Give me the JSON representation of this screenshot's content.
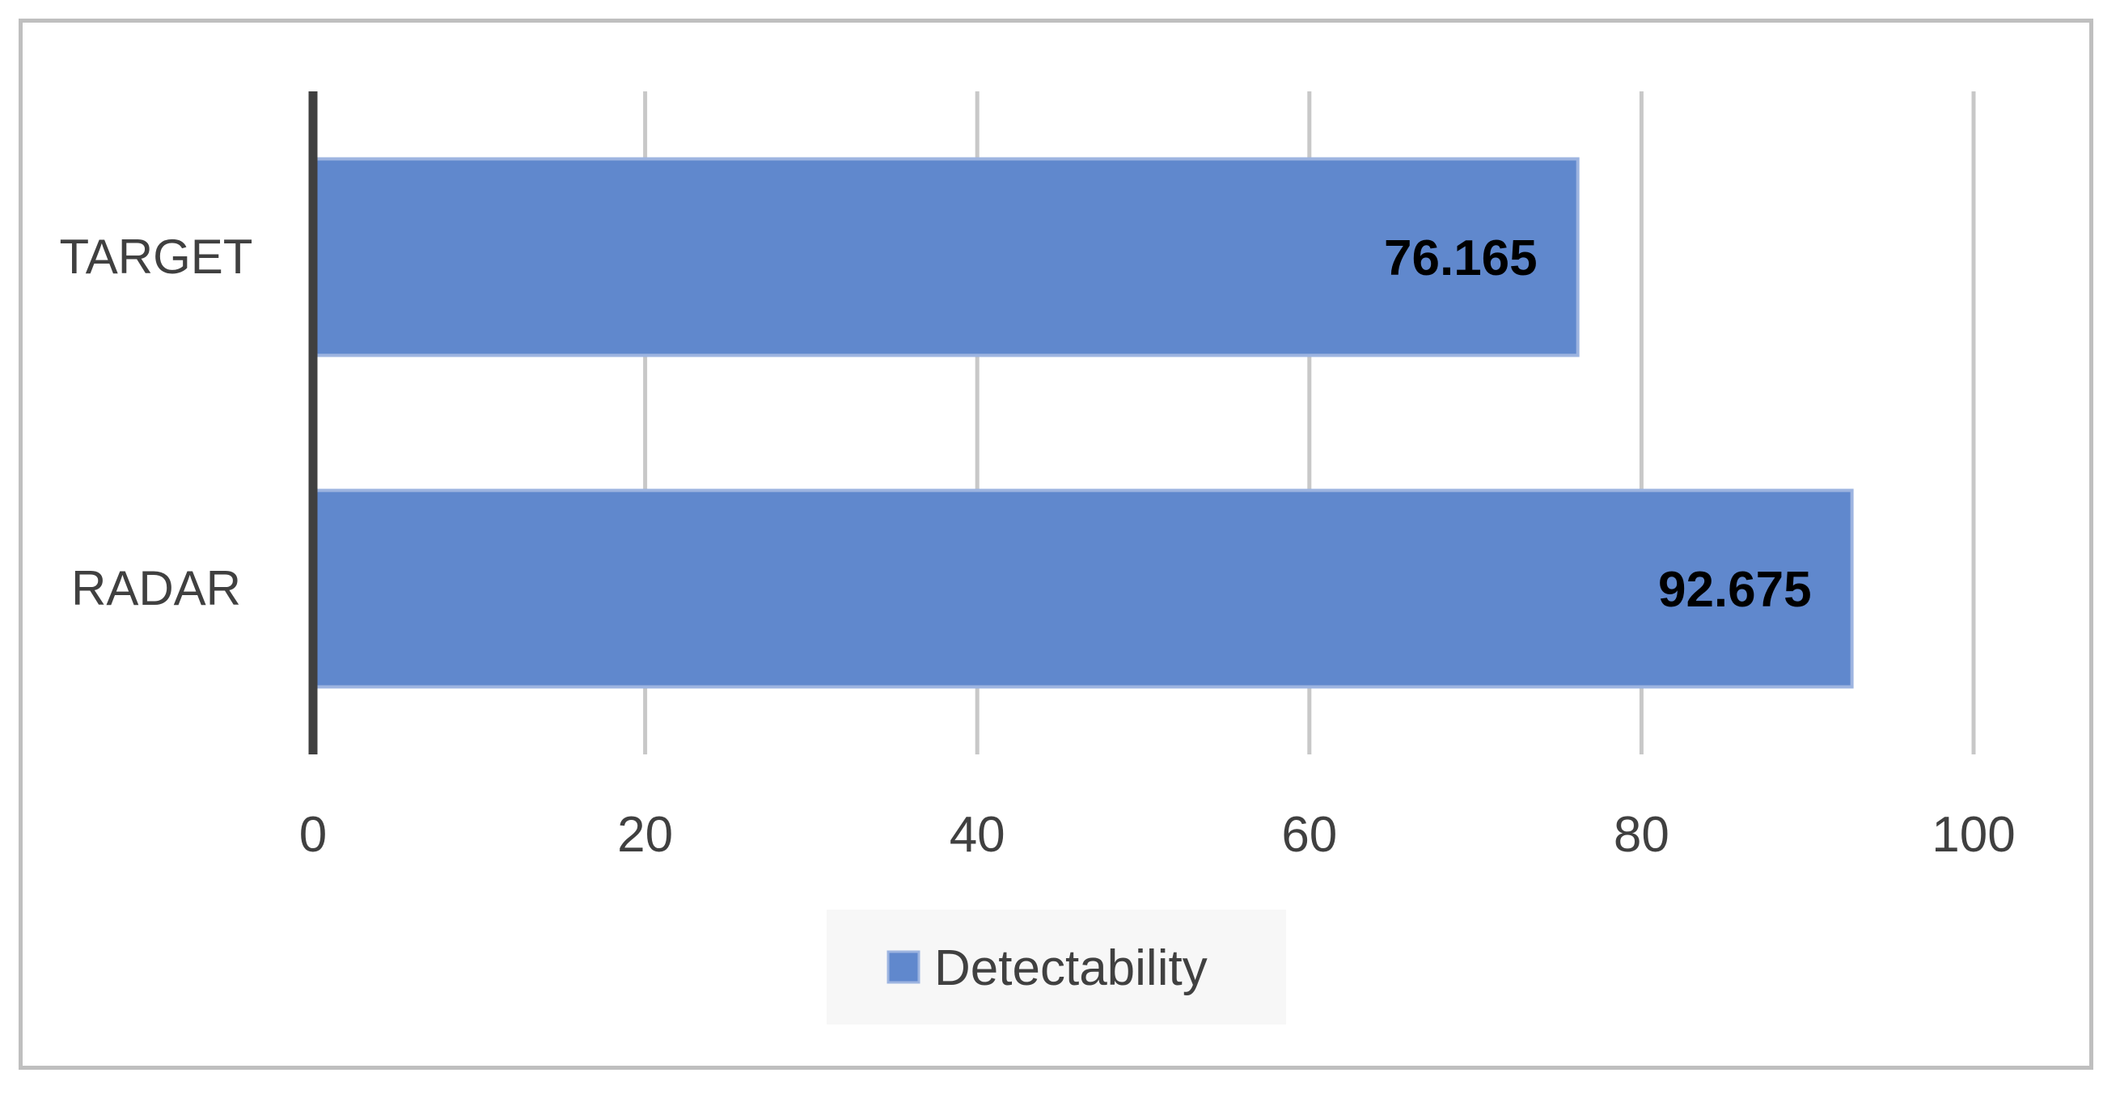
{
  "chart_data": {
    "type": "bar",
    "orientation": "horizontal",
    "categories": [
      "TARGET",
      "RADAR"
    ],
    "series": [
      {
        "name": "Detectability",
        "values": [
          76.165,
          92.675
        ],
        "color": "#6088CD"
      }
    ],
    "data_labels": [
      "76.165",
      "92.675"
    ],
    "xlim": [
      0,
      100
    ],
    "xticks": [
      0,
      20,
      40,
      60,
      80,
      100
    ],
    "xtick_labels": [
      "0",
      "20",
      "40",
      "60",
      "80",
      "100"
    ],
    "grid": true,
    "legend_position": "bottom"
  },
  "colors": {
    "bar": "#6088CD",
    "bar_edge": "#9DB4E0",
    "grid": "#c8c8c8",
    "axis": "#404040",
    "frame": "#bfbfbf",
    "legend_bg": "#f7f7f7"
  }
}
